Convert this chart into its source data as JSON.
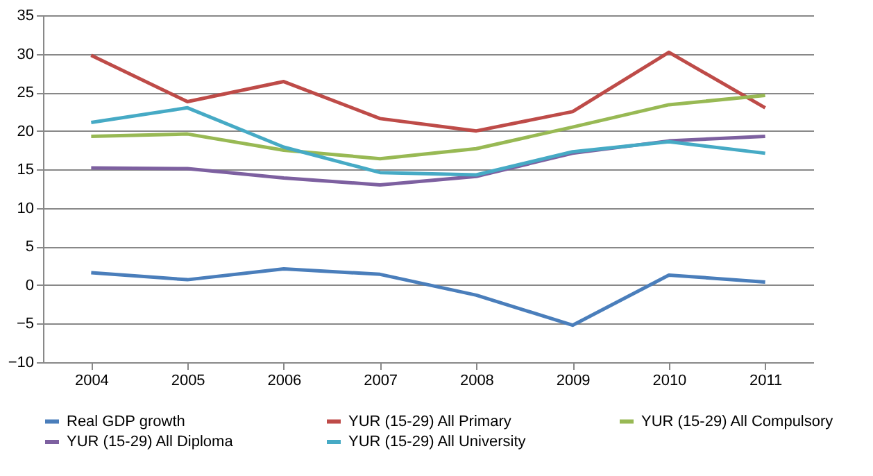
{
  "chart_data": {
    "type": "line",
    "categories": [
      "2004",
      "2005",
      "2006",
      "2007",
      "2008",
      "2009",
      "2010",
      "2011"
    ],
    "ylim": [
      -10,
      35
    ],
    "yticks": [
      -10,
      -5,
      0,
      5,
      10,
      15,
      20,
      25,
      30,
      35
    ],
    "grid": "y",
    "legend": "bottom",
    "marker": "none",
    "line_style": "solid",
    "series": [
      {
        "name": "Real GDP growth",
        "color": "#4a7ebb",
        "values": [
          1.6,
          0.7,
          2.1,
          1.4,
          -1.3,
          -5.2,
          1.3,
          0.4
        ]
      },
      {
        "name": "YUR (15-29) All Primary",
        "color": "#be4b48",
        "values": [
          29.8,
          23.8,
          26.4,
          21.6,
          20.0,
          22.5,
          30.2,
          23.0
        ]
      },
      {
        "name": "YUR (15-29) All Compulsory",
        "color": "#98b954",
        "values": [
          19.3,
          19.6,
          17.5,
          16.4,
          17.7,
          20.5,
          23.4,
          24.6
        ]
      },
      {
        "name": "YUR (15-29) All Diploma",
        "color": "#7d60a0",
        "values": [
          15.2,
          15.1,
          13.9,
          13.0,
          14.1,
          17.1,
          18.7,
          19.3
        ]
      },
      {
        "name": "YUR (15-29) All University",
        "color": "#46aac5",
        "values": [
          21.1,
          23.0,
          17.9,
          14.6,
          14.3,
          17.3,
          18.6,
          17.1
        ]
      }
    ]
  }
}
